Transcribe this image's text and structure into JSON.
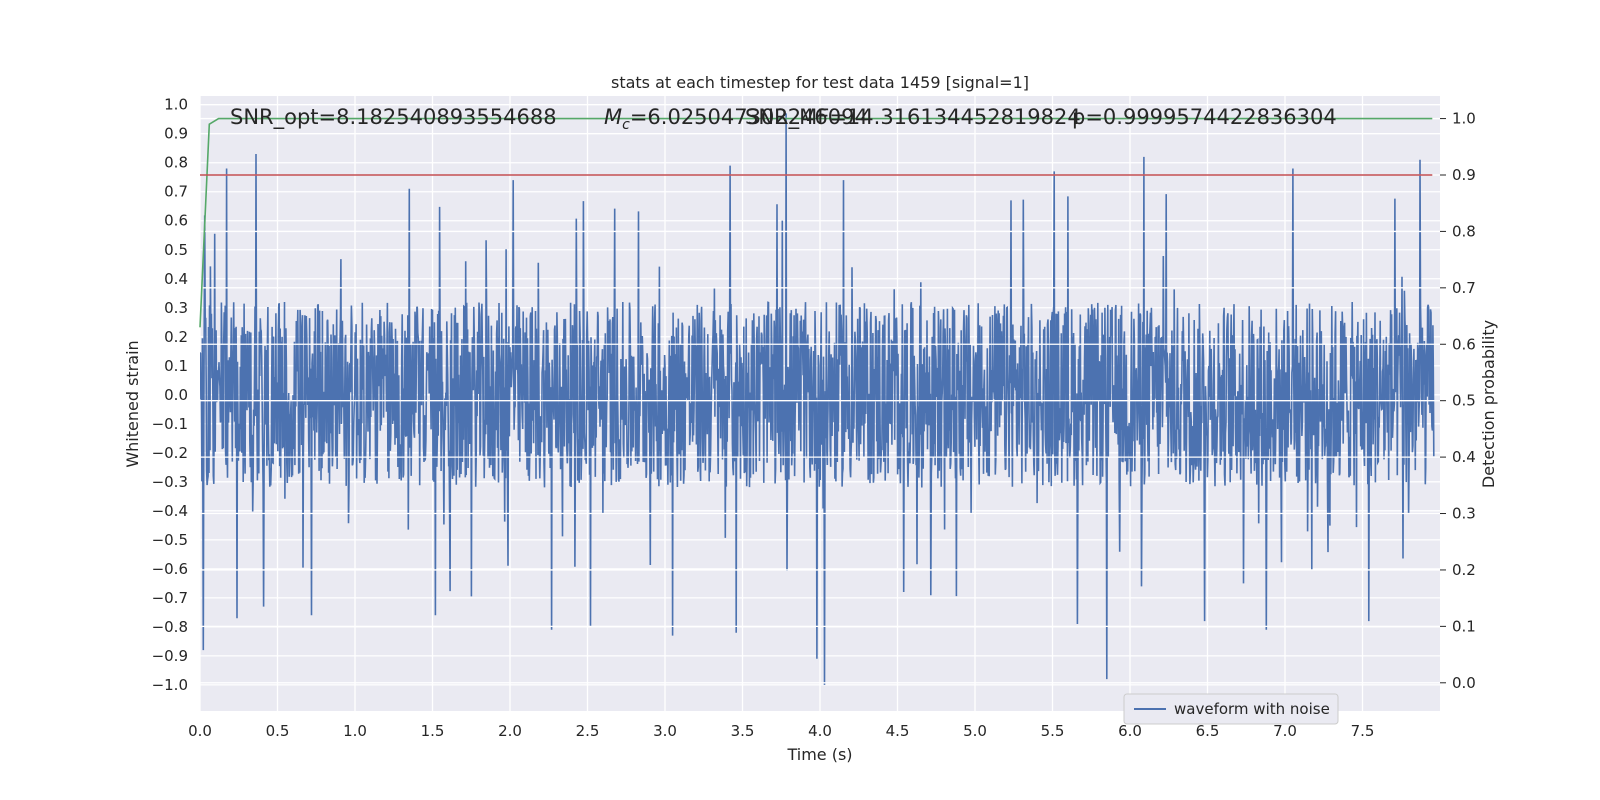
{
  "chart_data": {
    "type": "line",
    "title": "stats at each timestep for test data 1459 [signal=1]",
    "xlabel": "Time (s)",
    "ylabel": "Whitened strain",
    "y2label": "Detection probability",
    "xlim": [
      0.0,
      8.0
    ],
    "ylim": [
      -1.09,
      1.03
    ],
    "y2lim": [
      -0.05,
      1.04
    ],
    "x_ticks": [
      "0.0",
      "0.5",
      "1.0",
      "1.5",
      "2.0",
      "2.5",
      "3.0",
      "3.5",
      "4.0",
      "4.5",
      "5.0",
      "5.5",
      "6.0",
      "6.5",
      "7.0",
      "7.5"
    ],
    "y_ticks": [
      "1.0",
      "0.9",
      "0.8",
      "0.7",
      "0.6",
      "0.5",
      "0.4",
      "0.3",
      "0.2",
      "0.1",
      "0.0",
      "−0.1",
      "−0.2",
      "−0.3",
      "−0.4",
      "−0.5",
      "−0.6",
      "−0.7",
      "−0.8",
      "−0.9",
      "−1.0"
    ],
    "y2_ticks": [
      "1.0",
      "0.9",
      "0.8",
      "0.7",
      "0.6",
      "0.5",
      "0.4",
      "0.3",
      "0.2",
      "0.1",
      "0.0"
    ],
    "grid": true,
    "legend_position": "lower-right",
    "annotations": {
      "snr_opt": "SNR_opt=8.182540893554688",
      "mc_prefix": "M",
      "mc_sub": "c",
      "mc_value": "=6.025047302246094",
      "snr_mf": "SNR_MF=14.316134452819824",
      "p_value": "p=0.9999574422836304"
    },
    "series": [
      {
        "name": "waveform with noise",
        "color": "#4c72b0",
        "noise_envelope": 0.32,
        "spikes": [
          {
            "x": 0.02,
            "y": -0.88
          },
          {
            "x": 0.17,
            "y": 0.78
          },
          {
            "x": 0.24,
            "y": -0.77
          },
          {
            "x": 0.36,
            "y": 0.83
          },
          {
            "x": 0.41,
            "y": -0.73
          },
          {
            "x": 0.72,
            "y": -0.76
          },
          {
            "x": 1.35,
            "y": 0.71
          },
          {
            "x": 1.52,
            "y": -0.76
          },
          {
            "x": 2.02,
            "y": 0.74
          },
          {
            "x": 2.27,
            "y": -0.81
          },
          {
            "x": 2.52,
            "y": -0.8
          },
          {
            "x": 3.05,
            "y": -0.83
          },
          {
            "x": 3.42,
            "y": 0.79
          },
          {
            "x": 3.46,
            "y": -0.82
          },
          {
            "x": 3.78,
            "y": 0.97
          },
          {
            "x": 3.98,
            "y": -0.91
          },
          {
            "x": 4.03,
            "y": -1.0
          },
          {
            "x": 4.15,
            "y": 0.74
          },
          {
            "x": 5.51,
            "y": 0.77
          },
          {
            "x": 5.66,
            "y": -0.79
          },
          {
            "x": 5.85,
            "y": -0.98
          },
          {
            "x": 6.09,
            "y": 0.82
          },
          {
            "x": 6.48,
            "y": -0.78
          },
          {
            "x": 6.88,
            "y": -0.81
          },
          {
            "x": 7.05,
            "y": 0.78
          },
          {
            "x": 7.54,
            "y": -0.78
          },
          {
            "x": 7.87,
            "y": 0.81
          }
        ]
      },
      {
        "name": "",
        "color": "#55a868",
        "axis": "y2",
        "x": [
          0.0,
          0.06,
          0.12,
          7.95
        ],
        "values": [
          0.63,
          0.99,
          1.0,
          1.0
        ]
      },
      {
        "name": "",
        "color": "#c44e52",
        "axis": "y2",
        "x": [
          0.0,
          7.95
        ],
        "values": [
          0.9,
          0.9
        ]
      }
    ]
  }
}
